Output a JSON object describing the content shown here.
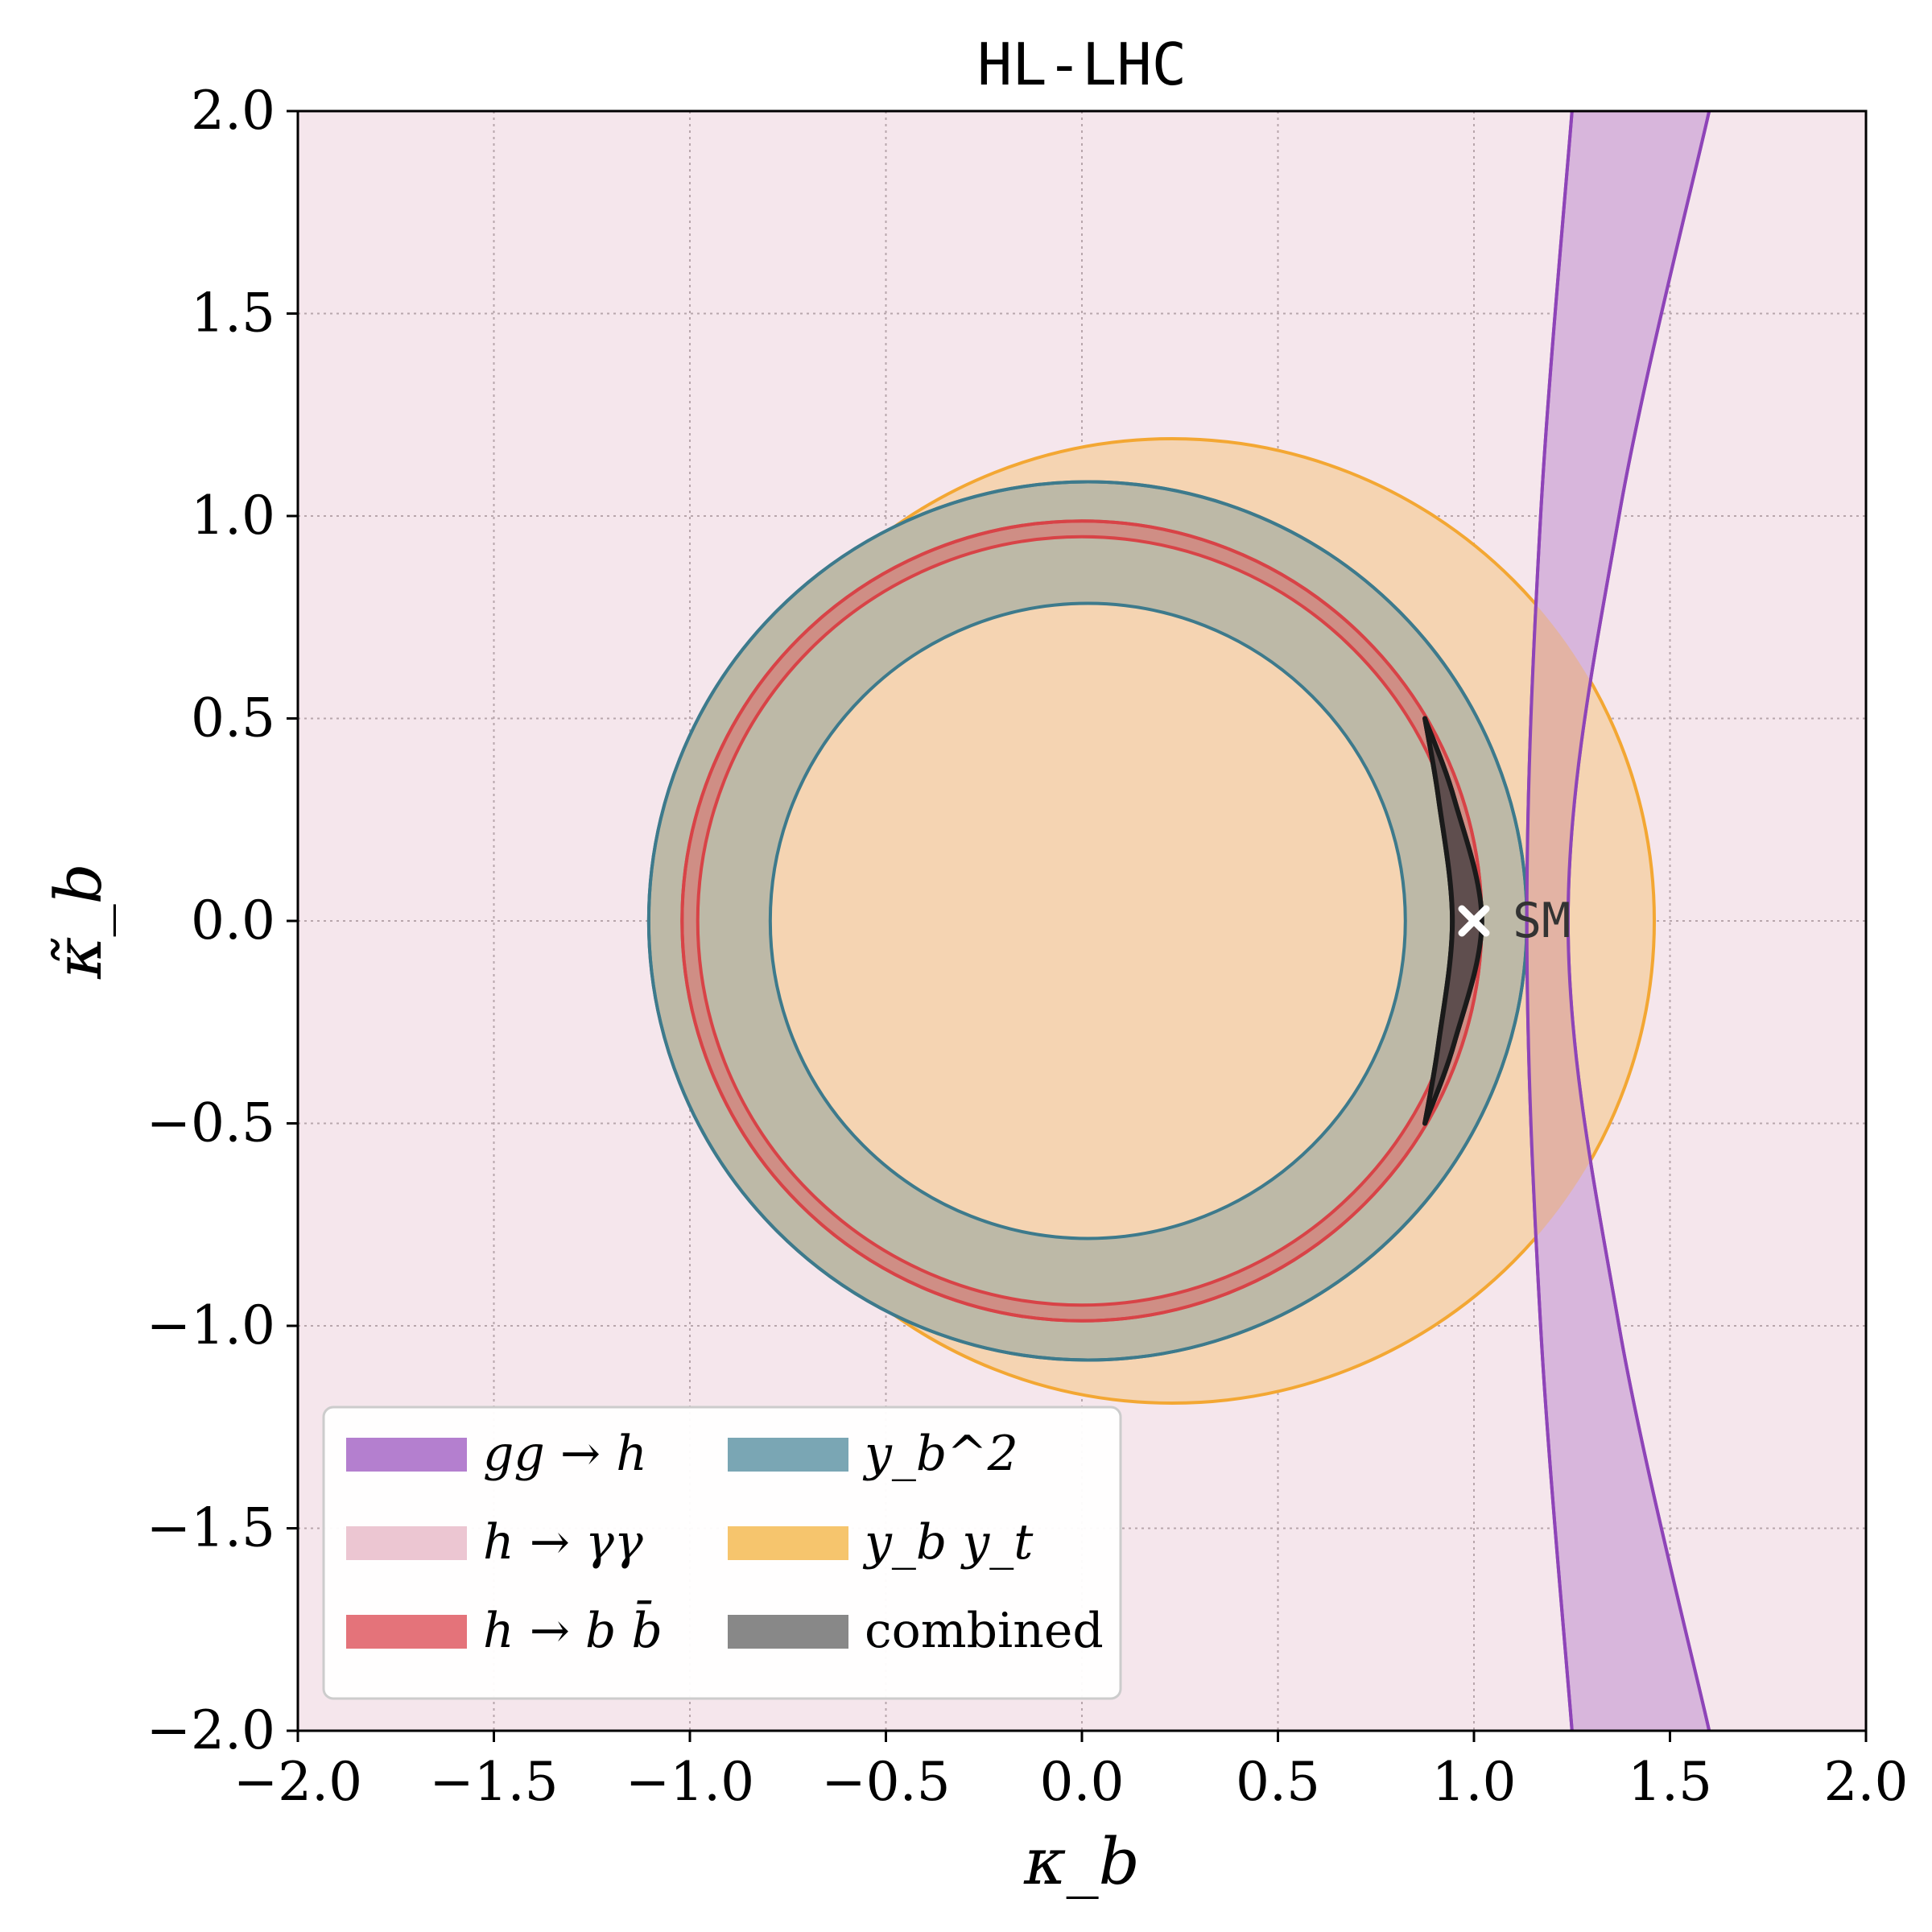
{
  "chart_data": {
    "type": "contour",
    "title": "HL-LHC",
    "xlabel": "κ_b",
    "ylabel": "κ̃_b",
    "xlim": [
      -2.0,
      2.0
    ],
    "ylim": [
      -2.0,
      2.0
    ],
    "xticks": [
      "−2.0",
      "−1.5",
      "−1.0",
      "−0.5",
      "0.0",
      "0.5",
      "1.0",
      "1.5",
      "2.0"
    ],
    "yticks": [
      "−2.0",
      "−1.5",
      "−1.0",
      "−0.5",
      "0.0",
      "0.5",
      "1.0",
      "1.5",
      "2.0"
    ],
    "grid": true,
    "legend_placement": "lower-left",
    "legend_columns": 2,
    "background_region": {
      "name": "h → γγ",
      "color": "#f5e6ec",
      "covers": "entire plane"
    },
    "regions": [
      {
        "name": "gg → h",
        "shape": "band",
        "fill": "#d8b6dc",
        "stroke": "#8e44b8",
        "inner_edge": [
          [
            1.25,
            -2.0
          ],
          [
            1.17,
            -1.0
          ],
          [
            1.135,
            0.0
          ],
          [
            1.17,
            1.0
          ],
          [
            1.25,
            2.0
          ]
        ],
        "outer_edge": [
          [
            1.6,
            -2.0
          ],
          [
            1.37,
            -1.0
          ],
          [
            1.24,
            0.0
          ],
          [
            1.37,
            1.0
          ],
          [
            1.6,
            2.0
          ]
        ]
      },
      {
        "name": "y_b y_t",
        "shape": "disk",
        "fill": "#f5d4b2",
        "stroke": "#f3a733",
        "center": [
          0.23,
          0.0
        ],
        "radius": 1.23
      },
      {
        "name": "y_b^2",
        "shape": "annulus",
        "fill": "#bdb9a7",
        "stroke": "#3d7a8c",
        "center": [
          0.015,
          0.0
        ],
        "inner_radius": 0.81,
        "outer_radius": 1.12
      },
      {
        "name": "h → b b̄",
        "shape": "annulus",
        "fill": "#cf8e85",
        "stroke": "#d84347",
        "center": [
          0.0,
          0.0
        ],
        "inner_radius": 0.98,
        "outer_radius": 1.02
      },
      {
        "name": "combined",
        "shape": "crescent",
        "fill": "#5f4e4e",
        "stroke": "#1a1a1a",
        "outer_edge": [
          [
            0.875,
            0.5
          ],
          [
            0.95,
            0.3
          ],
          [
            1.02,
            0.0
          ],
          [
            0.95,
            -0.3
          ],
          [
            0.875,
            -0.5
          ]
        ],
        "inner_edge": [
          [
            0.875,
            0.5
          ],
          [
            0.91,
            0.3
          ],
          [
            0.945,
            0.0
          ],
          [
            0.91,
            -0.3
          ],
          [
            0.875,
            -0.5
          ]
        ]
      }
    ],
    "points": [
      {
        "label": "SM",
        "x": 1.0,
        "y": 0.0,
        "marker": "x",
        "color": "#ffffff"
      }
    ],
    "legend": [
      {
        "label": "gg → h",
        "color": "#b47fcf"
      },
      {
        "label": "h → γγ",
        "color": "#ecc6d2"
      },
      {
        "label": "h → b b̄",
        "color": "#e4737a"
      },
      {
        "label": "y_b^2",
        "color": "#7aa6b4"
      },
      {
        "label": "y_b y_t",
        "color": "#f6c56d"
      },
      {
        "label": "combined",
        "color": "#888888"
      }
    ]
  }
}
